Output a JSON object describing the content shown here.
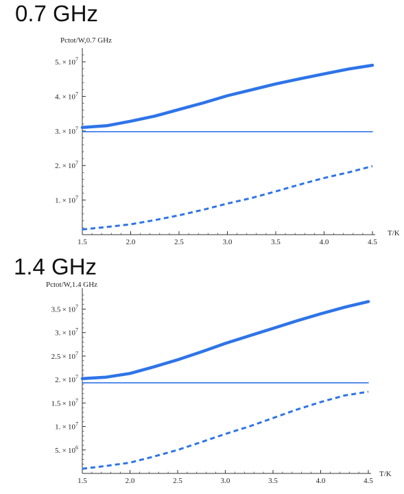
{
  "panels": [
    {
      "heading": "0.7 GHz",
      "chart_data": {
        "type": "line",
        "ylabel": "Pctot/W,0.7  GHz",
        "xlabel": "T/K",
        "xlim": [
          1.5,
          4.5
        ],
        "ylim": [
          0,
          52000000
        ],
        "x_ticks": [
          1.5,
          2.0,
          2.5,
          3.0,
          3.5,
          4.0,
          4.5
        ],
        "x_tick_labels": [
          "1.5",
          "2.0",
          "2.5",
          "3.0",
          "3.5",
          "4.0",
          "4.5"
        ],
        "y_ticks": [
          10000000,
          20000000,
          30000000,
          40000000,
          50000000
        ],
        "y_tick_labels": [
          {
            "coef": "1.",
            "exp": "7"
          },
          {
            "coef": "2.",
            "exp": "7"
          },
          {
            "coef": "3.",
            "exp": "7"
          },
          {
            "coef": "4.",
            "exp": "7"
          },
          {
            "coef": "5.",
            "exp": "7"
          }
        ],
        "series": [
          {
            "style": "thick",
            "x": [
              1.5,
              1.75,
              2.0,
              2.25,
              2.5,
              2.75,
              3.0,
              3.25,
              3.5,
              3.75,
              4.0,
              4.25,
              4.5
            ],
            "y": [
              31000000,
              31500000,
              32800000,
              34300000,
              36200000,
              38100000,
              40200000,
              41900000,
              43600000,
              45100000,
              46500000,
              47900000,
              49000000
            ]
          },
          {
            "style": "thin",
            "x": [
              1.5,
              4.5
            ],
            "y": [
              29800000,
              29800000
            ]
          },
          {
            "style": "dashed",
            "x": [
              1.5,
              1.75,
              2.0,
              2.25,
              2.5,
              2.75,
              3.0,
              3.25,
              3.5,
              3.75,
              4.0,
              4.25,
              4.5
            ],
            "y": [
              1500000,
              2200000,
              3000000,
              4200000,
              5600000,
              7200000,
              9000000,
              10600000,
              12500000,
              14500000,
              16400000,
              18000000,
              19800000
            ]
          }
        ],
        "colors": {
          "line": "#2e74e8",
          "axis": "#333333"
        }
      }
    },
    {
      "heading": "1.4 GHz",
      "chart_data": {
        "type": "line",
        "ylabel": "Pctot/W,1.4  GHz",
        "xlabel": "T/K",
        "xlim": [
          1.5,
          4.5
        ],
        "ylim": [
          0,
          38000000
        ],
        "x_ticks": [
          1.5,
          2.0,
          2.5,
          3.0,
          3.5,
          4.0,
          4.5
        ],
        "x_tick_labels": [
          "1.5",
          "2.0",
          "2.5",
          "3.0",
          "3.5",
          "4.0",
          "4.5"
        ],
        "y_ticks": [
          5000000,
          10000000,
          15000000,
          20000000,
          25000000,
          30000000,
          35000000
        ],
        "y_tick_labels": [
          {
            "coef": "5.",
            "exp": "6"
          },
          {
            "coef": "1.",
            "exp": "7"
          },
          {
            "coef": "1.5",
            "exp": "7"
          },
          {
            "coef": "2.",
            "exp": "7"
          },
          {
            "coef": "2.5",
            "exp": "7"
          },
          {
            "coef": "3.",
            "exp": "7"
          },
          {
            "coef": "3.5",
            "exp": "7"
          }
        ],
        "series": [
          {
            "style": "thick",
            "x": [
              1.5,
              1.75,
              2.0,
              2.25,
              2.5,
              2.75,
              3.0,
              3.25,
              3.5,
              3.75,
              4.0,
              4.25,
              4.5
            ],
            "y": [
              20200000,
              20500000,
              21300000,
              22700000,
              24200000,
              25900000,
              27700000,
              29300000,
              30900000,
              32500000,
              34000000,
              35400000,
              36600000
            ]
          },
          {
            "style": "thin",
            "x": [
              1.5,
              4.5
            ],
            "y": [
              19300000,
              19300000
            ]
          },
          {
            "style": "dashed",
            "x": [
              1.5,
              1.75,
              2.0,
              2.25,
              2.5,
              2.75,
              3.0,
              3.25,
              3.5,
              3.75,
              4.0,
              4.25,
              4.5
            ],
            "y": [
              1000000,
              1600000,
              2300000,
              3600000,
              5000000,
              6700000,
              8400000,
              10000000,
              11800000,
              13600000,
              15200000,
              16600000,
              17400000
            ]
          }
        ],
        "colors": {
          "line": "#2e74e8",
          "axis": "#333333"
        }
      }
    }
  ]
}
